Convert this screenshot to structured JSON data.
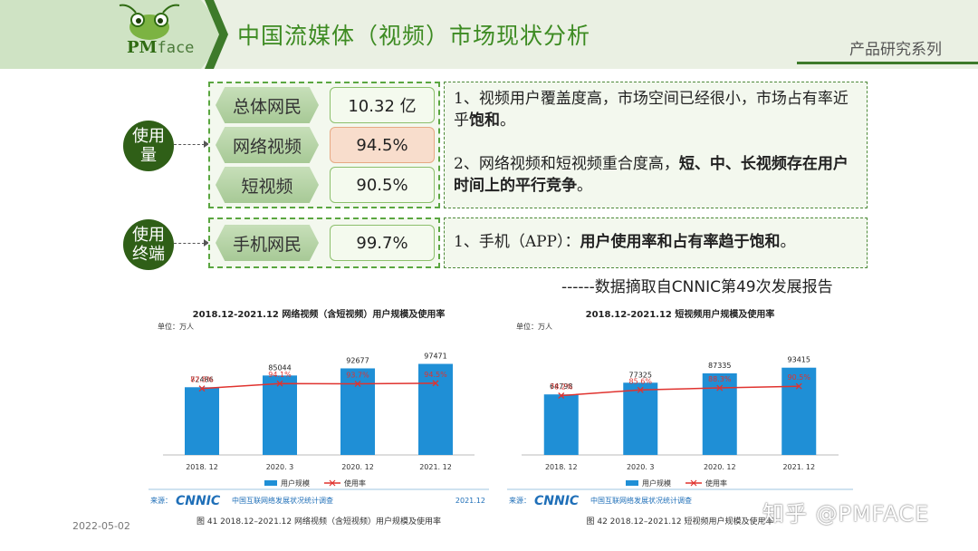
{
  "header": {
    "logo": "PM face",
    "logo_pm": "PM",
    "logo_face": "face",
    "title": "中国流媒体（视频）市场现状分析",
    "series": "产品研究系列"
  },
  "colors": {
    "accent": "#3d8b22",
    "dark_green": "#2f5f17",
    "highlight": "#f8ddcc",
    "bar": "#1f8fd6",
    "line": "#e0332f"
  },
  "usage": {
    "circle_label_1": "使用",
    "circle_label_2": "量",
    "rows": [
      {
        "label": "总体网民",
        "value": "10.32 亿",
        "highlight": false
      },
      {
        "label": "网络视频",
        "value": "94.5%",
        "highlight": true
      },
      {
        "label": "短视频",
        "value": "90.5%",
        "highlight": false
      }
    ],
    "note": {
      "p1_text": "1、视频用户覆盖度高，市场空间已经很小，市场占有率近乎",
      "p1_bold": "饱和",
      "p1_end": "。",
      "p2_text": "2、网络视频和短视频重合度高，",
      "p2_bold": "短、中、长视频存在用户时间上的平行竞争",
      "p2_end": "。"
    }
  },
  "terminal": {
    "circle_label_1": "使用",
    "circle_label_2": "终端",
    "rows": [
      {
        "label": "手机网民",
        "value": "99.7%",
        "highlight": false
      }
    ],
    "note": {
      "p1_text": "1、手机（APP）：",
      "p1_bold": "用户使用率和占有率趋于饱和",
      "p1_end": "。"
    }
  },
  "source_note": "------数据摘取自CNNIC第49次发展报告",
  "date": "2022-05-02",
  "watermark": "知乎 @PMFACE",
  "chart_data": [
    {
      "type": "bar",
      "title": "2018.12-2021.12 网络视频（含短视频）用户规模及使用率",
      "unit": "单位：万人",
      "categories": [
        "2018. 12",
        "2020. 3",
        "2020. 12",
        "2021. 12"
      ],
      "series": [
        {
          "name": "用户规模",
          "type": "bar",
          "values": [
            72486,
            85044,
            92677,
            97471
          ],
          "labels": [
            "72486",
            "85044",
            "92677",
            "97471"
          ]
        },
        {
          "name": "使用率",
          "type": "line",
          "values": [
            87.5,
            94.1,
            93.7,
            94.5
          ],
          "labels": [
            "87.5%",
            "94.1%",
            "93.7%",
            "94.5%"
          ]
        }
      ],
      "ylim": [
        0,
        130000
      ],
      "rate_lim": [
        0,
        160
      ],
      "source_label": "来源：",
      "source_brand": "CNNIC",
      "source_org": "中国互联网络发展状况统计调查",
      "source_date": "2021.12",
      "caption": "图 41 2018.12–2021.12 网络视频（含短视频）用户规模及使用率"
    },
    {
      "type": "bar",
      "title": "2018.12-2021.12 短视频用户规模及使用率",
      "unit": "单位：万人",
      "categories": [
        "2018. 12",
        "2020. 3",
        "2020. 12",
        "2021. 12"
      ],
      "series": [
        {
          "name": "用户规模",
          "type": "bar",
          "values": [
            64798,
            77325,
            87335,
            93415
          ],
          "labels": [
            "64798",
            "77325",
            "87335",
            "93415"
          ]
        },
        {
          "name": "使用率",
          "type": "line",
          "values": [
            78.2,
            85.6,
            88.3,
            90.5
          ],
          "labels": [
            "78.2%",
            "85.6%",
            "88.3%",
            "90.5%"
          ]
        }
      ],
      "ylim": [
        0,
        130000
      ],
      "rate_lim": [
        0,
        160
      ],
      "source_label": "来源：",
      "source_brand": "CNNIC",
      "source_org": "中国互联网络发展状况统计调查",
      "source_date": "",
      "caption": "图 42 2018.12–2021.12 短视频用户规模及使用率"
    }
  ]
}
